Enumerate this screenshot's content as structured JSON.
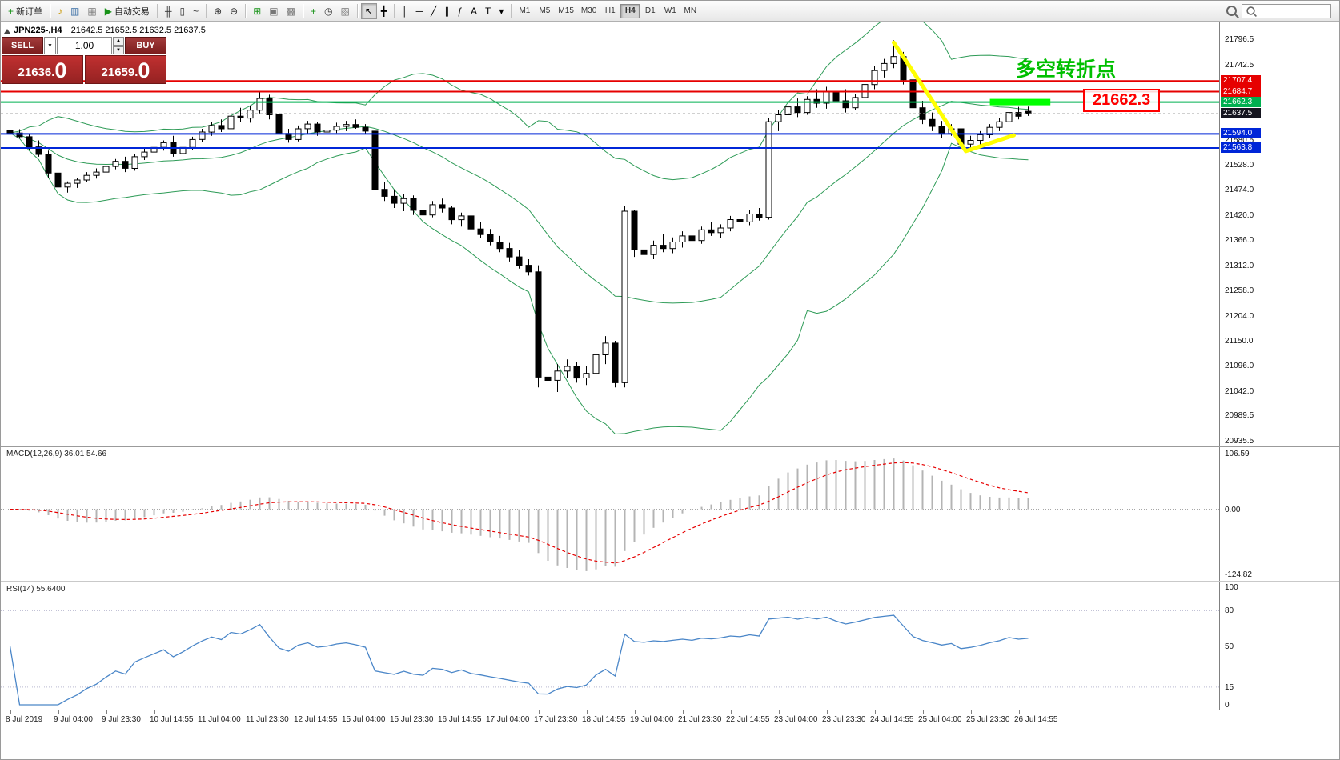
{
  "toolbar": {
    "groups": [
      [
        {
          "name": "new-order-button",
          "glyph": "+",
          "color": "#189218",
          "label": "新订单"
        }
      ],
      [
        {
          "name": "market-watch-button",
          "glyph": "♪",
          "color": "#c99700"
        },
        {
          "name": "data-window-button",
          "glyph": "▥",
          "color": "#3a6ea5"
        },
        {
          "name": "navigator-button",
          "glyph": "▦",
          "color": "#777777"
        },
        {
          "name": "autotrading-button",
          "glyph": "▶",
          "color": "#189218",
          "label": "自动交易"
        }
      ],
      [
        {
          "name": "bar-chart-button",
          "glyph": "╫",
          "color": "#333333"
        },
        {
          "name": "candlestick-chart-button",
          "glyph": "▯",
          "color": "#333333"
        },
        {
          "name": "line-chart-button",
          "glyph": "~",
          "color": "#333333"
        }
      ],
      [
        {
          "name": "zoom-in-button",
          "glyph": "⊕",
          "color": "#333333"
        },
        {
          "name": "zoom-out-button",
          "glyph": "⊖",
          "color": "#333333"
        }
      ],
      [
        {
          "name": "tile-windows-button",
          "glyph": "⊞",
          "color": "#189218"
        },
        {
          "name": "arrange-windows-button",
          "glyph": "▣",
          "color": "#777777"
        },
        {
          "name": "cascade-windows-button",
          "glyph": "▩",
          "color": "#777777"
        }
      ],
      [
        {
          "name": "indicators-button",
          "glyph": "+",
          "color": "#189218"
        },
        {
          "name": "periods-button",
          "glyph": "◷",
          "color": "#333333"
        },
        {
          "name": "templates-button",
          "glyph": "▨",
          "color": "#777777"
        }
      ],
      [
        {
          "name": "cursor-button",
          "glyph": "↖",
          "color": "#000000",
          "active": true
        },
        {
          "name": "crosshair-button",
          "glyph": "╋",
          "color": "#000000"
        }
      ],
      [
        {
          "name": "vertical-line-button",
          "glyph": "│",
          "color": "#000000"
        },
        {
          "name": "horizontal-line-button",
          "glyph": "─",
          "color": "#000000"
        },
        {
          "name": "trendline-button",
          "glyph": "╱",
          "color": "#000000"
        },
        {
          "name": "channel-button",
          "glyph": "∥",
          "color": "#000000"
        },
        {
          "name": "fibonacci-button",
          "glyph": "ƒ",
          "color": "#000000"
        },
        {
          "name": "text-button",
          "glyph": "A",
          "color": "#000000"
        },
        {
          "name": "label-button",
          "glyph": "T",
          "color": "#000000"
        },
        {
          "name": "shapes-button",
          "glyph": "▾",
          "color": "#000000"
        }
      ]
    ],
    "timeframes": {
      "items": [
        "M1",
        "M5",
        "M15",
        "M30",
        "H1",
        "H4",
        "D1",
        "W1",
        "MN"
      ],
      "active": "H4"
    },
    "search": {
      "placeholder": ""
    }
  },
  "trade": {
    "sell_label": "SELL",
    "buy_label": "BUY",
    "volume": "1.00",
    "sell_price_main": "21636.",
    "sell_price_big": "0",
    "buy_price_main": "21659.",
    "buy_price_big": "0"
  },
  "chart_data": [
    {
      "id": "main",
      "type": "candlestick",
      "title_symbol": "JPN225-,H4",
      "title_ohlc": "21642.5 21652.5 21632.5 21637.5",
      "price_range": [
        20925,
        21835
      ],
      "bollinger": {
        "period": 20,
        "deviation": 2,
        "color": "#2e9b57"
      },
      "candle_colors": {
        "up": "#ffffff",
        "down": "#000000",
        "outline": "#000000"
      },
      "hlines": [
        {
          "price": 21707.4,
          "color": "#e60000"
        },
        {
          "price": 21684.7,
          "color": "#e60000"
        },
        {
          "price": 21662.3,
          "color": "#00b050"
        },
        {
          "price": 21594.0,
          "color": "#0026d8"
        },
        {
          "price": 21563.8,
          "color": "#0026d8"
        }
      ],
      "bid_line": {
        "price": 21637.5,
        "color": "#a0a0a0"
      },
      "axis_labels": [
        21796.5,
        21742.5,
        21580.5,
        21528.0,
        21474.0,
        21420.0,
        21366.0,
        21312.0,
        21258.0,
        21204.0,
        21150.0,
        21096.0,
        21042.0,
        20989.5,
        20935.5
      ],
      "axis_tags": [
        {
          "text": "21707.4",
          "price": 21707.4,
          "color": "#e60000"
        },
        {
          "text": "21684.7",
          "price": 21684.7,
          "color": "#e60000"
        },
        {
          "text": "21662.3",
          "price": 21662.3,
          "color": "#00b050"
        },
        {
          "text": "21637.5",
          "price": 21637.5,
          "color": "#15151f"
        },
        {
          "text": "21594.0",
          "price": 21594.0,
          "color": "#0026d8"
        },
        {
          "text": "21563.8",
          "price": 21563.8,
          "color": "#0026d8"
        }
      ],
      "x_labels": [
        {
          "bar": 0,
          "text": "8 Jul 2019"
        },
        {
          "bar": 5,
          "text": "9 Jul 04:00"
        },
        {
          "bar": 10,
          "text": "9 Jul 23:30"
        },
        {
          "bar": 15,
          "text": "10 Jul 14:55"
        },
        {
          "bar": 20,
          "text": "11 Jul 04:00"
        },
        {
          "bar": 25,
          "text": "11 Jul 23:30"
        },
        {
          "bar": 30,
          "text": "12 Jul 14:55"
        },
        {
          "bar": 35,
          "text": "15 Jul 04:00"
        },
        {
          "bar": 40,
          "text": "15 Jul 23:30"
        },
        {
          "bar": 45,
          "text": "16 Jul 14:55"
        },
        {
          "bar": 50,
          "text": "17 Jul 04:00"
        },
        {
          "bar": 55,
          "text": "17 Jul 23:30"
        },
        {
          "bar": 60,
          "text": "18 Jul 14:55"
        },
        {
          "bar": 65,
          "text": "19 Jul 04:00"
        },
        {
          "bar": 70,
          "text": "21 Jul 23:30"
        },
        {
          "bar": 75,
          "text": "22 Jul 14:55"
        },
        {
          "bar": 80,
          "text": "23 Jul 04:00"
        },
        {
          "bar": 85,
          "text": "23 Jul 23:30"
        },
        {
          "bar": 90,
          "text": "24 Jul 14:55"
        },
        {
          "bar": 95,
          "text": "25 Jul 04:00"
        },
        {
          "bar": 100,
          "text": "25 Jul 23:30"
        },
        {
          "bar": 105,
          "text": "26 Jul 14:55"
        }
      ],
      "annotations": {
        "turning_point": {
          "text": "多空转折点",
          "color": "#00bf00"
        },
        "price_box": {
          "text": "21662.3",
          "color": "#ff0000"
        },
        "highlight": {
          "bar_from": 102.3,
          "bar_to": 108.6,
          "price": 21662.3,
          "thickness": 8,
          "color": "#00ff00"
        },
        "zigzag": {
          "color": "#ffff00",
          "width": 5,
          "points": [
            [
              92,
              21790
            ],
            [
              99.5,
              21557
            ],
            [
              104.5,
              21591
            ]
          ]
        }
      },
      "candles": [
        [
          21602,
          21612,
          21592,
          21596
        ],
        [
          21596,
          21604,
          21584,
          21588
        ],
        [
          21588,
          21594,
          21560,
          21566
        ],
        [
          21566,
          21580,
          21545,
          21550
        ],
        [
          21550,
          21558,
          21500,
          21510
        ],
        [
          21510,
          21515,
          21472,
          21480
        ],
        [
          21480,
          21492,
          21468,
          21488
        ],
        [
          21488,
          21500,
          21478,
          21495
        ],
        [
          21495,
          21512,
          21490,
          21505
        ],
        [
          21505,
          21520,
          21498,
          21512
        ],
        [
          21512,
          21530,
          21505,
          21524
        ],
        [
          21524,
          21540,
          21518,
          21535
        ],
        [
          21535,
          21545,
          21512,
          21520
        ],
        [
          21520,
          21550,
          21515,
          21545
        ],
        [
          21545,
          21562,
          21538,
          21555
        ],
        [
          21555,
          21572,
          21548,
          21565
        ],
        [
          21565,
          21580,
          21558,
          21575
        ],
        [
          21575,
          21590,
          21545,
          21552
        ],
        [
          21552,
          21570,
          21542,
          21565
        ],
        [
          21565,
          21588,
          21560,
          21582
        ],
        [
          21582,
          21605,
          21576,
          21598
        ],
        [
          21598,
          21620,
          21590,
          21612
        ],
        [
          21612,
          21625,
          21598,
          21605
        ],
        [
          21605,
          21640,
          21600,
          21632
        ],
        [
          21632,
          21650,
          21620,
          21628
        ],
        [
          21628,
          21655,
          21618,
          21645
        ],
        [
          21645,
          21683,
          21638,
          21670
        ],
        [
          21670,
          21678,
          21625,
          21635
        ],
        [
          21635,
          21640,
          21588,
          21595
        ],
        [
          21595,
          21605,
          21575,
          21582
        ],
        [
          21582,
          21612,
          21578,
          21605
        ],
        [
          21605,
          21622,
          21595,
          21615
        ],
        [
          21615,
          21620,
          21590,
          21598
        ],
        [
          21598,
          21610,
          21585,
          21602
        ],
        [
          21602,
          21618,
          21596,
          21610
        ],
        [
          21610,
          21622,
          21600,
          21614
        ],
        [
          21614,
          21625,
          21605,
          21608
        ],
        [
          21608,
          21615,
          21595,
          21600
        ],
        [
          21600,
          21606,
          21468,
          21475
        ],
        [
          21475,
          21490,
          21450,
          21460
        ],
        [
          21460,
          21475,
          21435,
          21445
        ],
        [
          21445,
          21465,
          21428,
          21455
        ],
        [
          21455,
          21462,
          21420,
          21430
        ],
        [
          21430,
          21445,
          21410,
          21420
        ],
        [
          21420,
          21450,
          21415,
          21442
        ],
        [
          21442,
          21455,
          21425,
          21435
        ],
        [
          21435,
          21440,
          21400,
          21410
        ],
        [
          21410,
          21425,
          21395,
          21418
        ],
        [
          21418,
          21422,
          21380,
          21390
        ],
        [
          21390,
          21405,
          21370,
          21378
        ],
        [
          21378,
          21390,
          21355,
          21362
        ],
        [
          21362,
          21375,
          21340,
          21348
        ],
        [
          21348,
          21360,
          21320,
          21330
        ],
        [
          21330,
          21345,
          21305,
          21312
        ],
        [
          21312,
          21325,
          21290,
          21298
        ],
        [
          21298,
          21312,
          21050,
          21072
        ],
        [
          21072,
          21090,
          20950,
          21065
        ],
        [
          21065,
          21100,
          21040,
          21085
        ],
        [
          21085,
          21110,
          21070,
          21095
        ],
        [
          21095,
          21105,
          21060,
          21070
        ],
        [
          21070,
          21095,
          21055,
          21080
        ],
        [
          21080,
          21130,
          21075,
          21120
        ],
        [
          21120,
          21160,
          21100,
          21145
        ],
        [
          21145,
          21150,
          21050,
          21060
        ],
        [
          21060,
          21440,
          21050,
          21428
        ],
        [
          21428,
          21430,
          21330,
          21345
        ],
        [
          21345,
          21370,
          21320,
          21335
        ],
        [
          21335,
          21365,
          21325,
          21355
        ],
        [
          21355,
          21380,
          21340,
          21348
        ],
        [
          21348,
          21372,
          21338,
          21362
        ],
        [
          21362,
          21385,
          21350,
          21375
        ],
        [
          21375,
          21390,
          21355,
          21365
        ],
        [
          21365,
          21395,
          21358,
          21388
        ],
        [
          21388,
          21405,
          21375,
          21382
        ],
        [
          21382,
          21400,
          21370,
          21392
        ],
        [
          21392,
          21418,
          21385,
          21410
        ],
        [
          21410,
          21425,
          21395,
          21405
        ],
        [
          21405,
          21430,
          21398,
          21422
        ],
        [
          21422,
          21435,
          21408,
          21415
        ],
        [
          21415,
          21628,
          21410,
          21620
        ],
        [
          21620,
          21645,
          21600,
          21635
        ],
        [
          21635,
          21660,
          21622,
          21652
        ],
        [
          21652,
          21670,
          21630,
          21640
        ],
        [
          21640,
          21675,
          21635,
          21668
        ],
        [
          21668,
          21690,
          21650,
          21660
        ],
        [
          21660,
          21695,
          21648,
          21685
        ],
        [
          21685,
          21700,
          21655,
          21665
        ],
        [
          21665,
          21690,
          21640,
          21650
        ],
        [
          21650,
          21680,
          21645,
          21672
        ],
        [
          21672,
          21710,
          21665,
          21700
        ],
        [
          21700,
          21740,
          21690,
          21730
        ],
        [
          21730,
          21755,
          21715,
          21745
        ],
        [
          21745,
          21795,
          21735,
          21760
        ],
        [
          21760,
          21770,
          21700,
          21710
        ],
        [
          21710,
          21720,
          21640,
          21650
        ],
        [
          21650,
          21665,
          21615,
          21625
        ],
        [
          21625,
          21640,
          21600,
          21610
        ],
        [
          21610,
          21622,
          21585,
          21595
        ],
        [
          21595,
          21615,
          21590,
          21605
        ],
        [
          21605,
          21610,
          21560,
          21572
        ],
        [
          21572,
          21590,
          21558,
          21580
        ],
        [
          21580,
          21600,
          21570,
          21592
        ],
        [
          21592,
          21615,
          21585,
          21608
        ],
        [
          21608,
          21628,
          21600,
          21620
        ],
        [
          21620,
          21648,
          21612,
          21640
        ],
        [
          21640,
          21652,
          21625,
          21632
        ],
        [
          21642.5,
          21652.5,
          21632.5,
          21637.5
        ]
      ]
    },
    {
      "id": "macd",
      "type": "bar",
      "label": "MACD(12,26,9) 36.01 54.66",
      "params": {
        "fast": 12,
        "slow": 26,
        "signal": 9
      },
      "histogram_color": "#b4b4b4",
      "signal_color": "#e60000",
      "scale_max": 106.59,
      "scale_min": -124.82,
      "axis_labels": [
        {
          "value": 106.59,
          "text": "106.59"
        },
        {
          "value": 0,
          "text": "0.00"
        },
        {
          "value": -124.82,
          "text": "-124.82"
        }
      ]
    },
    {
      "id": "rsi",
      "type": "line",
      "label": "RSI(14) 55.6400",
      "params": {
        "period": 14
      },
      "color": "#4a86c8",
      "levels": [
        80,
        50,
        15
      ],
      "axis_labels": [
        {
          "value": 100,
          "text": "100"
        },
        {
          "value": 80,
          "text": "80"
        },
        {
          "value": 50,
          "text": "50"
        },
        {
          "value": 15,
          "text": "15"
        },
        {
          "value": 0,
          "text": "0"
        }
      ]
    }
  ]
}
